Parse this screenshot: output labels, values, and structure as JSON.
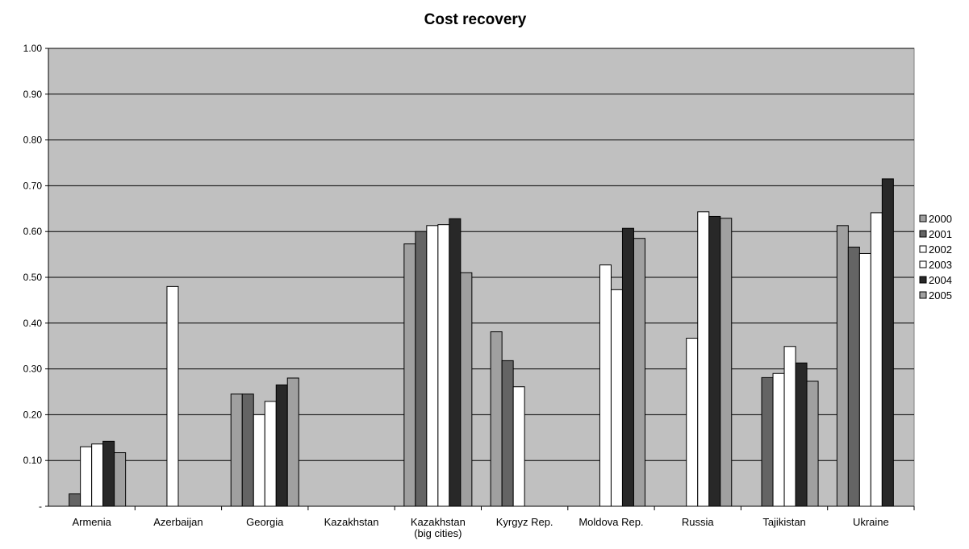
{
  "chart_data": {
    "type": "bar",
    "title": "Cost recovery",
    "xlabel": "",
    "ylabel": "",
    "ylim": [
      0,
      1.0
    ],
    "yticks": [
      "-",
      "0.10",
      "0.20",
      "0.30",
      "0.40",
      "0.50",
      "0.60",
      "0.70",
      "0.80",
      "0.90",
      "1.00"
    ],
    "grid": true,
    "legend_position": "right",
    "categories": [
      [
        "Armenia"
      ],
      [
        "Azerbaijan"
      ],
      [
        "Georgia"
      ],
      [
        "Kazakhstan"
      ],
      [
        "Kazakhstan",
        "(big cities)"
      ],
      [
        "Kyrgyz Rep."
      ],
      [
        "Moldova Rep."
      ],
      [
        "Russia"
      ],
      [
        "Tajikistan"
      ],
      [
        "Ukraine"
      ]
    ],
    "series": [
      {
        "name": "2000",
        "color": "#a0a0a0",
        "values": [
          null,
          null,
          0.245,
          null,
          0.573,
          0.381,
          null,
          null,
          null,
          0.613
        ]
      },
      {
        "name": "2001",
        "color": "#646464",
        "values": [
          0.027,
          null,
          0.245,
          null,
          0.6,
          0.318,
          null,
          null,
          0.281,
          0.566
        ]
      },
      {
        "name": "2002",
        "color": "#ffffff",
        "values": [
          0.13,
          0.48,
          0.2,
          null,
          0.613,
          0.261,
          0.527,
          0.367,
          0.29,
          0.552
        ]
      },
      {
        "name": "2003",
        "color": "#ffffff",
        "values": [
          0.136,
          null,
          0.229,
          null,
          0.615,
          null,
          0.473,
          0.643,
          0.349,
          0.641
        ]
      },
      {
        "name": "2004",
        "color": "#282828",
        "values": [
          0.142,
          null,
          0.265,
          null,
          0.628,
          null,
          0.607,
          0.633,
          0.313,
          0.715
        ]
      },
      {
        "name": "2005",
        "color": "#a0a0a0",
        "values": [
          0.117,
          null,
          0.28,
          null,
          0.51,
          null,
          0.585,
          0.629,
          0.273,
          null
        ]
      }
    ],
    "plot_background": "#c0c0c0"
  }
}
